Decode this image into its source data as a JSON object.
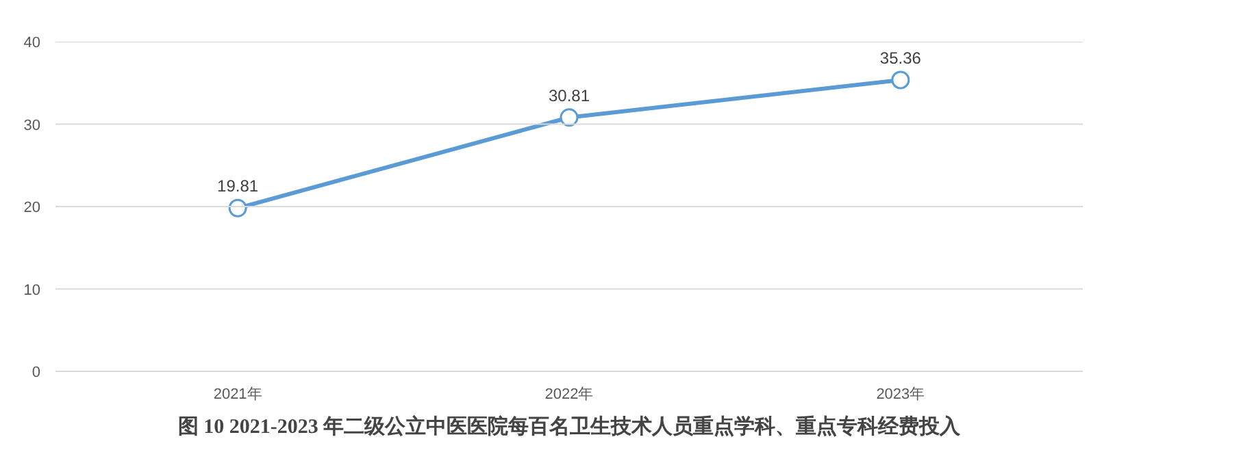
{
  "chart_data": {
    "type": "line",
    "title": "图 10 2021-2023 年二级公立中医医院每百名卫生技术人员重点学科、重点专科经费投入",
    "categories": [
      "2021年",
      "2022年",
      "2023年"
    ],
    "series": [
      {
        "color": "#5b9bd5",
        "values": [
          19.81,
          30.81,
          35.36
        ]
      }
    ],
    "ylim": [
      0,
      40
    ],
    "yticks": [
      0,
      10,
      20,
      30,
      40
    ],
    "grid": "y",
    "marker": "circle",
    "line_style": "solid",
    "data_labels": true
  }
}
